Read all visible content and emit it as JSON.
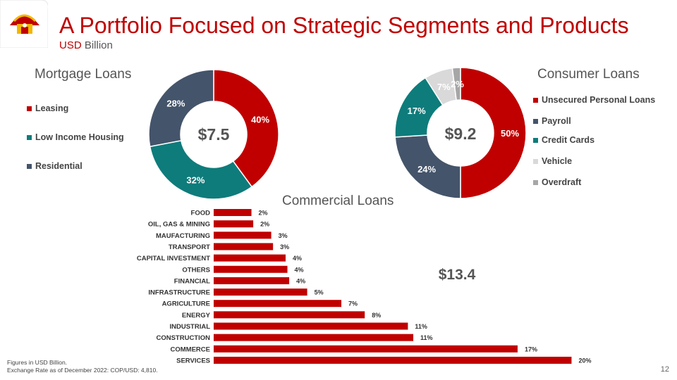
{
  "header": {
    "title": "A Portfolio Focused on Strategic Segments and Products",
    "subtitle_accent": "USD",
    "subtitle_rest": " Billion"
  },
  "colors": {
    "red": "#c00000",
    "teal": "#0e7c7b",
    "navy": "#44546a",
    "light_gray": "#d9d9d9",
    "mid_gray": "#a6a6a6"
  },
  "logo": {
    "icon": "house-umbrella-logo"
  },
  "chart_data": [
    {
      "type": "pie",
      "variant": "donut",
      "title": "Mortgage Loans",
      "center_label": "$7.5",
      "legend_position": "left",
      "series": [
        {
          "name": "Leasing",
          "value": 40,
          "label": "40%",
          "color": "#c00000"
        },
        {
          "name": "Low Income Housing",
          "value": 32,
          "label": "32%",
          "color": "#0e7c7b"
        },
        {
          "name": "Residential",
          "value": 28,
          "label": "28%",
          "color": "#44546a"
        }
      ]
    },
    {
      "type": "pie",
      "variant": "donut",
      "title": "Consumer Loans",
      "center_label": "$9.2",
      "legend_position": "right",
      "series": [
        {
          "name": "Unsecured Personal Loans",
          "value": 50,
          "label": "50%",
          "color": "#c00000"
        },
        {
          "name": "Payroll",
          "value": 24,
          "label": "24%",
          "color": "#44546a"
        },
        {
          "name": "Credit Cards",
          "value": 17,
          "label": "17%",
          "color": "#0e7c7b"
        },
        {
          "name": "Vehicle",
          "value": 7,
          "label": "7%",
          "color": "#d9d9d9"
        },
        {
          "name": "Overdraft",
          "value": 2,
          "label": "2%",
          "color": "#a6a6a6"
        }
      ]
    },
    {
      "type": "bar",
      "orientation": "horizontal",
      "title": "Commercial Loans",
      "total_label": "$13.4",
      "categories": [
        "FOOD",
        "OIL, GAS & MINING",
        "MAUFACTURING",
        "TRANSPORT",
        "CAPITAL INVESTMENT",
        "OTHERS",
        "FINANCIAL",
        "INFRASTRUCTURE",
        "AGRICULTURE",
        "ENERGY",
        "INDUSTRIAL",
        "CONSTRUCTION",
        "COMMERCE",
        "SERVICES"
      ],
      "values": [
        2.1,
        2.2,
        3.2,
        3.3,
        4.0,
        4.1,
        4.2,
        5.2,
        7.1,
        8.4,
        10.8,
        11.1,
        16.9,
        19.9
      ],
      "value_labels": [
        "2%",
        "2%",
        "3%",
        "3%",
        "4%",
        "4%",
        "4%",
        "5%",
        "7%",
        "8%",
        "11%",
        "11%",
        "17%",
        "20%"
      ],
      "color": "#c00000",
      "xlim": [
        0,
        20
      ]
    }
  ],
  "footnote": {
    "line1": "Figures in USD Billion.",
    "line2": "Exchange Rate as of December 2022: COP/USD: 4,810."
  },
  "page_number": "12"
}
